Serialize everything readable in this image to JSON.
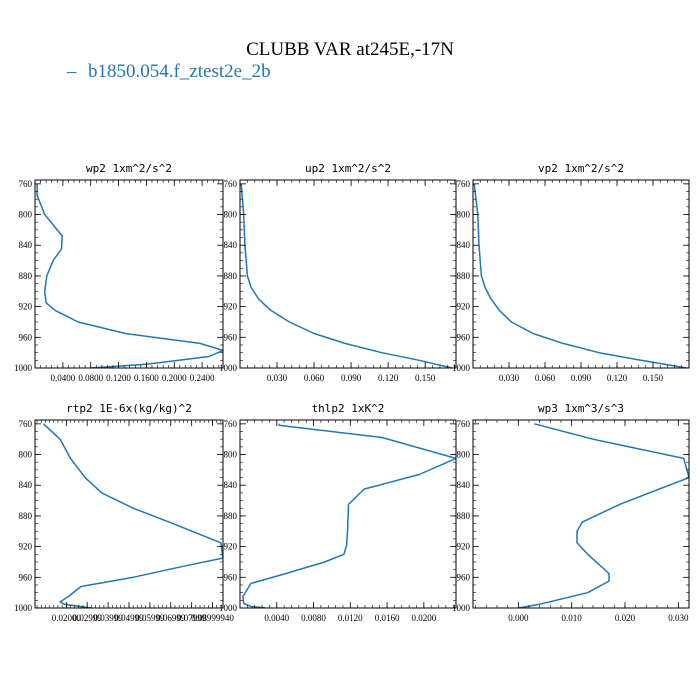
{
  "figure": {
    "title": "CLUBB VAR at245E,-17N",
    "legend": {
      "symbol": "–",
      "label": "b1850.054.f_ztest2e_2b",
      "color": "#1f77b4"
    }
  },
  "chart_data": [
    {
      "type": "line",
      "title": "wp2  1xm^2/s^2",
      "xlim": [
        0.0,
        0.27
      ],
      "ylim": [
        1000,
        755
      ],
      "x_ticks": [
        0.04,
        0.08,
        0.12,
        0.16,
        0.2,
        0.24
      ],
      "x_tick_labels": [
        "0.0400",
        "0.0800",
        "0.1200",
        "0.1600",
        "0.2000",
        "0.2400"
      ],
      "y_ticks": [
        760,
        800,
        840,
        880,
        920,
        960,
        1000
      ],
      "series": [
        {
          "color": "#1f77b4",
          "x": [
            0.003,
            0.003,
            0.014,
            0.039,
            0.038,
            0.026,
            0.017,
            0.014,
            0.016,
            0.029,
            0.062,
            0.13,
            0.237,
            0.27,
            0.25,
            0.16,
            0.08
          ],
          "y": [
            760,
            775,
            800,
            828,
            845,
            860,
            880,
            900,
            915,
            925,
            940,
            955,
            968,
            977,
            985,
            995,
            1000
          ]
        }
      ]
    },
    {
      "type": "line",
      "title": "up2  1xm^2/s^2",
      "xlim": [
        0.0,
        0.175
      ],
      "ylim": [
        1000,
        755
      ],
      "x_ticks": [
        0.03,
        0.06,
        0.09,
        0.12,
        0.15
      ],
      "x_tick_labels": [
        "0.030",
        "0.060",
        "0.090",
        "0.120",
        "0.150"
      ],
      "y_ticks": [
        760,
        800,
        840,
        880,
        920,
        960,
        1000
      ],
      "series": [
        {
          "color": "#1f77b4",
          "x": [
            0.001,
            0.003,
            0.004,
            0.005,
            0.006,
            0.009,
            0.015,
            0.025,
            0.04,
            0.06,
            0.085,
            0.115,
            0.145,
            0.172
          ],
          "y": [
            760,
            800,
            840,
            860,
            880,
            895,
            910,
            925,
            940,
            955,
            968,
            980,
            990,
            1000
          ]
        }
      ]
    },
    {
      "type": "line",
      "title": "vp2  1xm^2/s^2",
      "xlim": [
        0.0,
        0.18
      ],
      "ylim": [
        1000,
        755
      ],
      "x_ticks": [
        0.03,
        0.06,
        0.09,
        0.12,
        0.15
      ],
      "x_tick_labels": [
        "0.030",
        "0.060",
        "0.090",
        "0.120",
        "0.150"
      ],
      "y_ticks": [
        760,
        800,
        840,
        880,
        920,
        960,
        1000
      ],
      "series": [
        {
          "color": "#1f77b4",
          "x": [
            0.001,
            0.004,
            0.005,
            0.006,
            0.007,
            0.01,
            0.015,
            0.022,
            0.032,
            0.05,
            0.075,
            0.105,
            0.14,
            0.178
          ],
          "y": [
            760,
            800,
            840,
            860,
            880,
            895,
            910,
            925,
            940,
            955,
            968,
            980,
            990,
            1000
          ]
        }
      ]
    },
    {
      "type": "line",
      "title": "rtp2  1E-6x(kg/kg)^2",
      "xlim": [
        0.005,
        0.095
      ],
      "ylim": [
        1000,
        755
      ],
      "x_ticks": [
        0.02,
        0.03,
        0.04,
        0.05,
        0.06,
        0.07,
        0.08,
        0.09
      ],
      "x_tick_labels": [
        "0.02000",
        "0.02999",
        "0.03999",
        "0.04999",
        "0.05999",
        "0.06999",
        "0.07999",
        "0.08999940"
      ],
      "y_ticks": [
        760,
        800,
        840,
        880,
        920,
        960,
        1000
      ],
      "series": [
        {
          "color": "#1f77b4",
          "x": [
            0.009,
            0.017,
            0.022,
            0.029,
            0.037,
            0.052,
            0.071,
            0.094,
            0.095,
            0.077,
            0.052,
            0.027,
            0.021,
            0.017,
            0.019,
            0.032
          ],
          "y": [
            760,
            780,
            805,
            830,
            850,
            870,
            890,
            915,
            935,
            945,
            960,
            972,
            985,
            992,
            995,
            1000
          ]
        }
      ]
    },
    {
      "type": "line",
      "title": "thlp2  1xK^2",
      "xlim": [
        0.0,
        0.0235
      ],
      "ylim": [
        1000,
        755
      ],
      "x_ticks": [
        0.004,
        0.008,
        0.012,
        0.016,
        0.02
      ],
      "x_tick_labels": [
        "0.0040",
        "0.0080",
        "0.0120",
        "0.0160",
        "0.0200"
      ],
      "y_ticks": [
        760,
        800,
        840,
        880,
        920,
        960,
        1000
      ],
      "series": [
        {
          "color": "#1f77b4",
          "x": [
            0.0042,
            0.0043,
            0.0155,
            0.0235,
            0.0195,
            0.0135,
            0.0118,
            0.0117,
            0.0116,
            0.0113,
            0.0092,
            0.005,
            0.0012,
            0.0003,
            0.0004,
            0.0012,
            0.0028
          ],
          "y": [
            760,
            762,
            778,
            805,
            826,
            845,
            865,
            900,
            918,
            930,
            940,
            955,
            968,
            985,
            994,
            998,
            1000
          ]
        }
      ]
    },
    {
      "type": "line",
      "title": "wp3  1xm^3/s^3",
      "xlim": [
        -0.0085,
        0.032
      ],
      "ylim": [
        1000,
        755
      ],
      "x_ticks": [
        0.0,
        0.01,
        0.02,
        0.03
      ],
      "x_tick_labels": [
        "0.000",
        "0.010",
        "0.020",
        "0.030"
      ],
      "y_ticks": [
        760,
        800,
        840,
        880,
        920,
        960,
        1000
      ],
      "series": [
        {
          "color": "#1f77b4",
          "x": [
            0.003,
            0.014,
            0.031,
            0.032,
            0.019,
            0.012,
            0.011,
            0.011,
            0.013,
            0.017,
            0.017,
            0.013,
            0.004,
            0.0
          ],
          "y": [
            760,
            780,
            805,
            830,
            865,
            888,
            900,
            915,
            930,
            955,
            965,
            980,
            995,
            1000
          ]
        }
      ]
    }
  ]
}
